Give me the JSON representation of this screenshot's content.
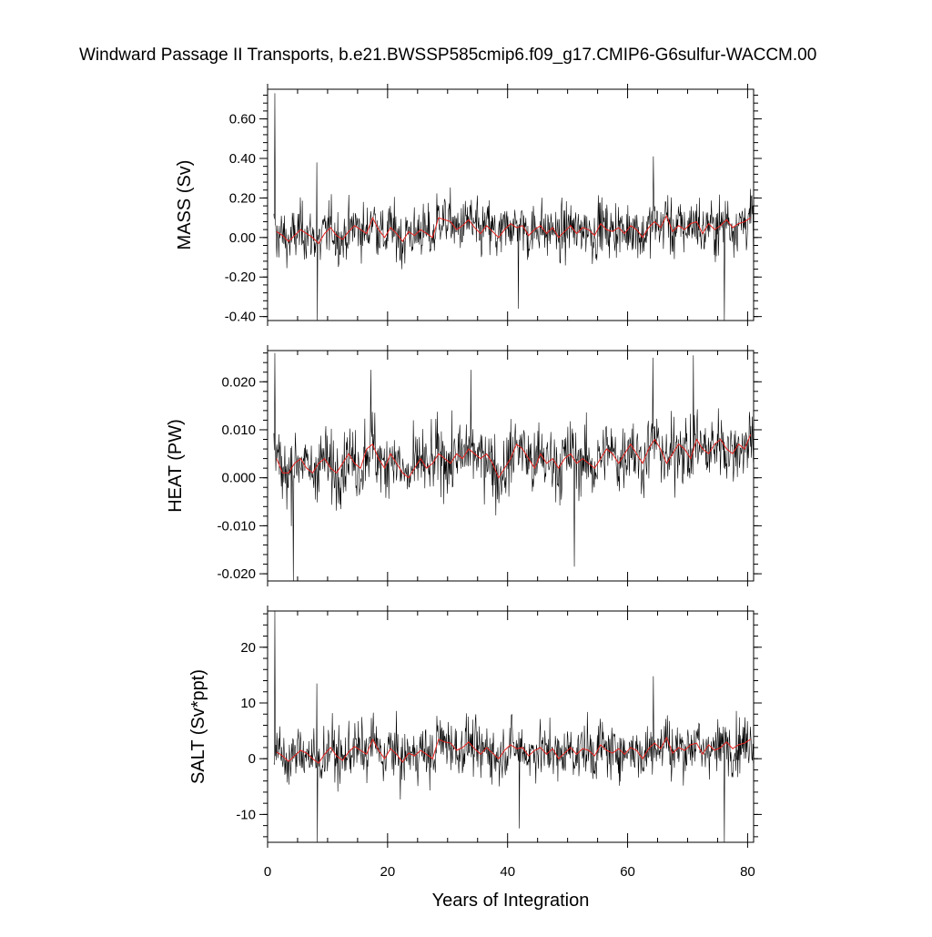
{
  "title": "Windward Passage II Transports, b.e21.BWSSP585cmip6.f09_g17.CMIP6-G6sulfur-WACCM.00",
  "xlabel": "Years of Integration",
  "colors": {
    "monthly": "#000000",
    "annual": "#e8221e"
  },
  "chart_data": {
    "type": "line",
    "title": "Windward Passage II Transports, b.e21.BWSSP585cmip6.f09_g17.CMIP6-G6sulfur-WACCM.00",
    "xlabel": "Years of Integration",
    "xlim": [
      0,
      81
    ],
    "xticks": [
      0,
      20,
      40,
      60,
      80
    ],
    "grid": false,
    "legend": "none",
    "panels": [
      {
        "ylabel": "MASS (Sv)",
        "ylim": [
          -0.42,
          0.75
        ],
        "yticks": [
          -0.4,
          -0.2,
          0.0,
          0.2,
          0.4,
          0.6
        ],
        "ytick_labels": [
          "-0.40",
          "-0.20",
          "0.00",
          "0.20",
          "0.40",
          "0.60"
        ],
        "monthly_mean": 0.02,
        "monthly_spread": 0.1,
        "annual_x": [
          1.5,
          2.5,
          3.5,
          4.5,
          5.5,
          6.5,
          7.5,
          8.5,
          9.5,
          10.5,
          11.5,
          12.5,
          13.5,
          14.5,
          15.5,
          16.5,
          17.5,
          18.5,
          19.5,
          20.5,
          21.5,
          22.5,
          23.5,
          24.5,
          25.5,
          26.5,
          27.5,
          28.5,
          29.5,
          30.5,
          31.5,
          32.5,
          33.5,
          34.5,
          35.5,
          36.5,
          37.5,
          38.5,
          39.5,
          40.5,
          41.5,
          42.5,
          43.5,
          44.5,
          45.5,
          46.5,
          47.5,
          48.5,
          49.5,
          50.5,
          51.5,
          52.5,
          53.5,
          54.5,
          55.5,
          56.5,
          57.5,
          58.5,
          59.5,
          60.5,
          61.5,
          62.5,
          63.5,
          64.5,
          65.5,
          66.5,
          67.5,
          68.5,
          69.5,
          70.5,
          71.5,
          72.5,
          73.5,
          74.5,
          75.5,
          76.5,
          77.5,
          78.5,
          79.5,
          80.5
        ],
        "annual_y": [
          0.03,
          0.01,
          -0.02,
          0.01,
          0.04,
          0.02,
          0.0,
          -0.03,
          0.02,
          0.05,
          0.01,
          -0.01,
          0.03,
          0.06,
          0.04,
          0.02,
          0.1,
          0.04,
          0.0,
          0.05,
          0.02,
          -0.02,
          0.03,
          0.01,
          0.04,
          0.02,
          0.0,
          0.1,
          0.09,
          0.08,
          0.04,
          0.06,
          0.09,
          0.05,
          0.02,
          0.06,
          0.03,
          0.0,
          0.04,
          0.07,
          0.05,
          0.06,
          0.01,
          0.04,
          0.06,
          0.02,
          0.05,
          0.0,
          0.03,
          0.06,
          0.02,
          0.05,
          0.04,
          0.01,
          0.07,
          0.04,
          0.03,
          0.05,
          0.02,
          0.06,
          0.04,
          0.0,
          0.05,
          0.08,
          0.05,
          0.11,
          0.03,
          0.06,
          0.04,
          0.07,
          0.08,
          0.02,
          0.07,
          0.04,
          0.06,
          0.09,
          0.05,
          0.07,
          0.08,
          0.1
        ],
        "spikes": [
          [
            1.2,
            0.73
          ],
          [
            1.5,
            -0.1
          ],
          [
            8.2,
            0.38
          ],
          [
            8.3,
            -0.42
          ],
          [
            41.8,
            -0.36
          ],
          [
            64.3,
            0.41
          ],
          [
            76.1,
            -0.42
          ]
        ]
      },
      {
        "ylabel": "HEAT (PW)",
        "ylim": [
          -0.0215,
          0.0265
        ],
        "yticks": [
          -0.02,
          -0.01,
          0.0,
          0.01,
          0.02
        ],
        "ytick_labels": [
          "-0.020",
          "-0.010",
          "0.000",
          "0.010",
          "0.020"
        ],
        "monthly_mean": 0.004,
        "monthly_spread": 0.0052,
        "annual_x": [
          1.5,
          2.5,
          3.5,
          4.5,
          5.5,
          6.5,
          7.5,
          8.5,
          9.5,
          10.5,
          11.5,
          12.5,
          13.5,
          14.5,
          15.5,
          16.5,
          17.5,
          18.5,
          19.5,
          20.5,
          21.5,
          22.5,
          23.5,
          24.5,
          25.5,
          26.5,
          27.5,
          28.5,
          29.5,
          30.5,
          31.5,
          32.5,
          33.5,
          34.5,
          35.5,
          36.5,
          37.5,
          38.5,
          39.5,
          40.5,
          41.5,
          42.5,
          43.5,
          44.5,
          45.5,
          46.5,
          47.5,
          48.5,
          49.5,
          50.5,
          51.5,
          52.5,
          53.5,
          54.5,
          55.5,
          56.5,
          57.5,
          58.5,
          59.5,
          60.5,
          61.5,
          62.5,
          63.5,
          64.5,
          65.5,
          66.5,
          67.5,
          68.5,
          69.5,
          70.5,
          71.5,
          72.5,
          73.5,
          74.5,
          75.5,
          76.5,
          77.5,
          78.5,
          79.5,
          80.5
        ],
        "annual_y": [
          0.004,
          0.001,
          0.001,
          0.003,
          0.004,
          0.002,
          0.001,
          0.003,
          0.004,
          0.002,
          0.001,
          0.003,
          0.005,
          0.003,
          0.002,
          0.006,
          0.007,
          0.004,
          0.002,
          0.005,
          0.003,
          0.001,
          0.0,
          0.002,
          0.004,
          0.002,
          0.003,
          0.005,
          0.004,
          0.003,
          0.005,
          0.004,
          0.006,
          0.005,
          0.004,
          0.005,
          0.003,
          0.0,
          0.002,
          0.004,
          0.007,
          0.006,
          0.004,
          0.002,
          0.005,
          0.003,
          0.004,
          0.002,
          0.004,
          0.005,
          0.003,
          0.004,
          0.003,
          0.002,
          0.004,
          0.006,
          0.005,
          0.003,
          0.005,
          0.007,
          0.005,
          0.003,
          0.006,
          0.008,
          0.006,
          0.003,
          0.005,
          0.007,
          0.006,
          0.004,
          0.008,
          0.006,
          0.005,
          0.007,
          0.008,
          0.006,
          0.005,
          0.007,
          0.006,
          0.009
        ],
        "spikes": [
          [
            1.2,
            0.026
          ],
          [
            4.3,
            -0.0215
          ],
          [
            17.2,
            0.0225
          ],
          [
            33.9,
            0.0225
          ],
          [
            51.1,
            -0.0185
          ],
          [
            64.2,
            0.025
          ],
          [
            71.0,
            0.0255
          ]
        ]
      },
      {
        "ylabel": "SALT (Sv*ppt)",
        "ylim": [
          -15,
          26.5
        ],
        "yticks": [
          -10,
          0,
          10,
          20
        ],
        "ytick_labels": [
          "-10",
          "0",
          "10",
          "20"
        ],
        "monthly_mean": 1.0,
        "monthly_spread": 3.6,
        "annual_x": [
          1.5,
          2.5,
          3.5,
          4.5,
          5.5,
          6.5,
          7.5,
          8.5,
          9.5,
          10.5,
          11.5,
          12.5,
          13.5,
          14.5,
          15.5,
          16.5,
          17.5,
          18.5,
          19.5,
          20.5,
          21.5,
          22.5,
          23.5,
          24.5,
          25.5,
          26.5,
          27.5,
          28.5,
          29.5,
          30.5,
          31.5,
          32.5,
          33.5,
          34.5,
          35.5,
          36.5,
          37.5,
          38.5,
          39.5,
          40.5,
          41.5,
          42.5,
          43.5,
          44.5,
          45.5,
          46.5,
          47.5,
          48.5,
          49.5,
          50.5,
          51.5,
          52.5,
          53.5,
          54.5,
          55.5,
          56.5,
          57.5,
          58.5,
          59.5,
          60.5,
          61.5,
          62.5,
          63.5,
          64.5,
          65.5,
          66.5,
          67.5,
          68.5,
          69.5,
          70.5,
          71.5,
          72.5,
          73.5,
          74.5,
          75.5,
          76.5,
          77.5,
          78.5,
          79.5,
          80.5
        ],
        "annual_y": [
          1.2,
          0.5,
          -0.5,
          0.5,
          1.5,
          1.0,
          0.0,
          -0.8,
          0.8,
          2.0,
          0.5,
          -0.3,
          1.2,
          2.2,
          1.5,
          0.8,
          3.5,
          1.5,
          0.0,
          1.8,
          0.8,
          -0.6,
          1.0,
          0.5,
          1.5,
          0.8,
          0.0,
          3.5,
          3.0,
          2.8,
          1.5,
          2.0,
          3.0,
          1.8,
          0.8,
          2.0,
          1.0,
          0.0,
          1.5,
          2.5,
          1.8,
          2.0,
          0.5,
          1.5,
          2.0,
          0.8,
          1.8,
          0.0,
          1.0,
          2.0,
          0.8,
          1.8,
          1.5,
          0.5,
          2.5,
          1.5,
          1.0,
          1.8,
          0.8,
          2.0,
          1.5,
          0.0,
          1.8,
          2.8,
          1.8,
          3.8,
          1.0,
          2.0,
          1.5,
          2.5,
          2.8,
          0.8,
          2.5,
          1.5,
          2.0,
          3.0,
          1.8,
          2.5,
          2.8,
          3.5
        ],
        "spikes": [
          [
            1.2,
            26.5
          ],
          [
            8.2,
            13.5
          ],
          [
            8.3,
            -15
          ],
          [
            42.0,
            -12.5
          ],
          [
            64.3,
            14.8
          ],
          [
            76.1,
            -15
          ]
        ]
      }
    ]
  }
}
